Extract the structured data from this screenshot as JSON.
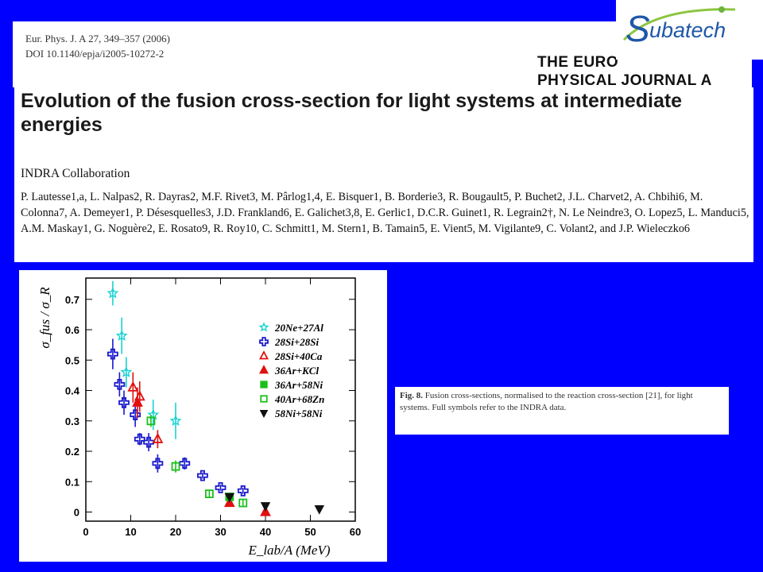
{
  "header": {
    "citation_line1": "Eur. Phys. J. A 27, 349–357 (2006)",
    "citation_line2": "DOI 10.1140/epja/i2005-10272-2",
    "journal_line1": "THE EURO",
    "journal_line2": "PHYSICAL JOURNAL A"
  },
  "logo": {
    "text_prefix": "S",
    "text_main": "ubatech",
    "colors": {
      "text": "#1f57a8",
      "swoosh": "#8cc63f",
      "dot": "#6db33f"
    }
  },
  "paper": {
    "title": "Evolution of the fusion cross-section for light systems at intermediate energies",
    "collaboration": "INDRA Collaboration",
    "authors": "P. Lautesse1,a, L. Nalpas2, R. Dayras2, M.F. Rivet3, M. Pârlog1,4, E. Bisquer1, B. Borderie3, R. Bougault5, P. Buchet2, J.L. Charvet2, A. Chbihi6, M. Colonna7, A. Demeyer1, P. Désesquelles3, J.D. Frankland6, E. Galichet3,8, E. Gerlic1, D.C.R. Guinet1, R. Legrain2†, N. Le Neindre3, O. Lopez5, L. Manduci5, A.M. Maskay1, G. Noguère2, E. Rosato9, R. Roy10, C. Schmitt1, M. Stern1, B. Tamain5, E. Vient5, M. Vigilante9, C. Volant2, and J.P. Wieleczko6"
  },
  "caption": {
    "label": "Fig. 8.",
    "text": " Fusion cross-sections, normalised to the reaction cross-section [21], for light systems. Full symbols refer to the INDRA data."
  },
  "chart_data": {
    "type": "scatter",
    "xlabel": "E_lab/A (MeV)",
    "ylabel": "σ_fus / σ_R",
    "xlim": [
      0,
      60
    ],
    "ylim": [
      -0.03,
      0.77
    ],
    "xticks": [
      "0",
      "10",
      "20",
      "30",
      "40",
      "50",
      "60"
    ],
    "yticks": [
      "0",
      "0.1",
      "0.2",
      "0.3",
      "0.4",
      "0.5",
      "0.6",
      "0.7"
    ],
    "legend_position": "upper-right",
    "series": [
      {
        "name": "20Ne+27Al",
        "marker": "star-open",
        "color": "#19d3d3",
        "x": [
          6,
          8,
          9,
          15,
          20
        ],
        "y": [
          0.72,
          0.58,
          0.46,
          0.32,
          0.3
        ],
        "err": [
          0.04,
          0.06,
          0.05,
          0.05,
          0.06
        ]
      },
      {
        "name": "28Si+28Si",
        "marker": "cross-open",
        "color": "#1a1acc",
        "x": [
          6,
          7.5,
          8.5,
          11,
          12,
          14,
          16,
          22,
          26,
          30,
          35
        ],
        "y": [
          0.52,
          0.42,
          0.36,
          0.32,
          0.24,
          0.23,
          0.16,
          0.16,
          0.12,
          0.08,
          0.07
        ],
        "err": [
          0.05,
          0.04,
          0.04,
          0.04,
          0.02,
          0.03,
          0.03,
          0.02,
          0.01,
          0.01,
          0.01
        ]
      },
      {
        "name": "28Si+40Ca",
        "marker": "triangle-open",
        "color": "#e01010",
        "x": [
          10.5,
          12,
          16
        ],
        "y": [
          0.41,
          0.38,
          0.24
        ],
        "err": [
          0.05,
          0.05,
          0.03
        ]
      },
      {
        "name": "36Ar+KCl",
        "marker": "triangle-filled",
        "color": "#e01010",
        "x": [
          11.5,
          32,
          40
        ],
        "y": [
          0.36,
          0.03,
          0.0
        ],
        "err": [
          0.05,
          0.0,
          0.0
        ]
      },
      {
        "name": "36Ar+58Ni",
        "marker": "square-filled",
        "color": "#1bbf1b",
        "x": [
          32
        ],
        "y": [
          0.05
        ],
        "err": [
          0.0
        ]
      },
      {
        "name": "40Ar+68Zn",
        "marker": "square-open",
        "color": "#1bbf1b",
        "x": [
          14.5,
          20,
          27.5,
          35
        ],
        "y": [
          0.3,
          0.15,
          0.06,
          0.03
        ],
        "err": [
          0.02,
          0.02,
          0.01,
          0.01
        ]
      },
      {
        "name": "58Ni+58Ni",
        "marker": "triangle-down-filled",
        "color": "#111111",
        "x": [
          32,
          40,
          52
        ],
        "y": [
          0.05,
          0.02,
          0.01
        ],
        "err": [
          0.0,
          0.0,
          0.0
        ]
      }
    ]
  }
}
